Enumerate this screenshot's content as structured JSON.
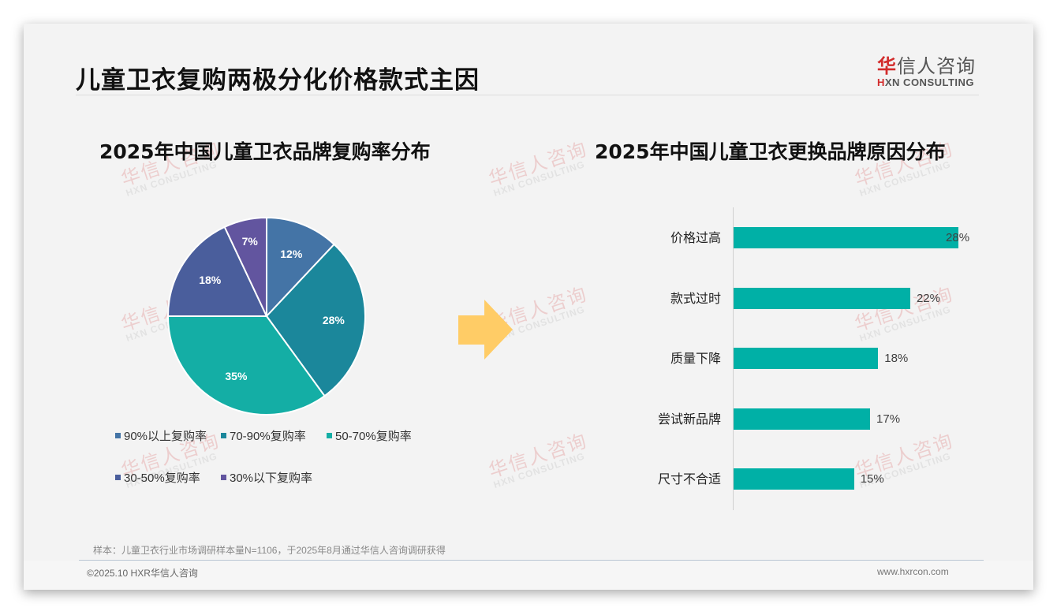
{
  "page": {
    "title": "儿童卫衣复购两极分化价格款式主因",
    "logo": {
      "cn_accent": "华",
      "cn_rest": "信人咨询",
      "en_accent": "H",
      "en_rest": "XN CONSULTING"
    },
    "watermark": {
      "cn": "华信人咨询",
      "en": "HXN CONSULTING"
    },
    "note": "样本：儿童卫衣行业市场调研样本量N=1106，于2025年8月通过华信人咨询调研获得",
    "copyright": "©2025.10 HXR华信人咨询",
    "site": "www.hxrcon.com",
    "arrow_color": "#ffcc66"
  },
  "pie": {
    "title": "2025年中国儿童卫衣品牌复购率分布",
    "slices": [
      {
        "label": "90%以上复购率",
        "value": 12,
        "text": "12%",
        "color": "#4474a6"
      },
      {
        "label": "70-90%复购率",
        "value": 28,
        "text": "28%",
        "color": "#1b879b"
      },
      {
        "label": "50-70%复购率",
        "value": 35,
        "text": "35%",
        "color": "#14aea5"
      },
      {
        "label": "30-50%复购率",
        "value": 18,
        "text": "18%",
        "color": "#4a5e9c"
      },
      {
        "label": "30%以下复购率",
        "value": 7,
        "text": "7%",
        "color": "#62559f"
      }
    ]
  },
  "bars": {
    "title": "2025年中国儿童卫衣更换品牌原因分布",
    "color": "#00b0a6",
    "items": [
      {
        "label": "价格过高",
        "value": 28,
        "text": "28%"
      },
      {
        "label": "款式过时",
        "value": 22,
        "text": "22%"
      },
      {
        "label": "质量下降",
        "value": 18,
        "text": "18%"
      },
      {
        "label": "尝试新品牌",
        "value": 17,
        "text": "17%"
      },
      {
        "label": "尺寸不合适",
        "value": 15,
        "text": "15%"
      }
    ]
  },
  "chart_data": [
    {
      "type": "pie",
      "title": "2025年中国儿童卫衣品牌复购率分布",
      "categories": [
        "90%以上复购率",
        "70-90%复购率",
        "50-70%复购率",
        "30-50%复购率",
        "30%以下复购率"
      ],
      "values": [
        12,
        28,
        35,
        18,
        7
      ],
      "unit": "%",
      "legend_position": "bottom"
    },
    {
      "type": "bar",
      "orientation": "horizontal",
      "title": "2025年中国儿童卫衣更换品牌原因分布",
      "categories": [
        "价格过高",
        "款式过时",
        "质量下降",
        "尝试新品牌",
        "尺寸不合适"
      ],
      "values": [
        28,
        22,
        18,
        17,
        15
      ],
      "unit": "%",
      "xlabel": "",
      "ylabel": "",
      "grid": false
    }
  ]
}
